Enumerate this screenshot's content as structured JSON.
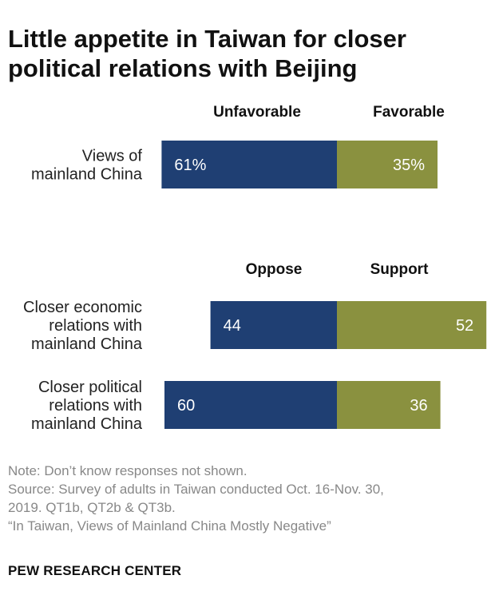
{
  "title": "Little appetite in Taiwan for closer political relations with Beijing",
  "colors": {
    "negative": "#1f3f73",
    "positive": "#8a913f",
    "text": "#111111",
    "note": "#888888"
  },
  "chart_data": {
    "type": "bar",
    "orientation": "horizontal-diverging",
    "groups": [
      {
        "headers": {
          "negative": "Unfavorable",
          "positive": "Favorable"
        },
        "rows": [
          {
            "label_lines": [
              "Views of",
              "mainland China"
            ],
            "negative": 61,
            "positive": 35,
            "negative_label": "61%",
            "positive_label": "35%"
          }
        ]
      },
      {
        "headers": {
          "negative": "Oppose",
          "positive": "Support"
        },
        "rows": [
          {
            "label_lines": [
              "Closer economic",
              "relations with",
              "mainland China"
            ],
            "negative": 44,
            "positive": 52,
            "negative_label": "44",
            "positive_label": "52"
          },
          {
            "label_lines": [
              "Closer political",
              "relations with",
              "mainland China"
            ],
            "negative": 60,
            "positive": 36,
            "negative_label": "60",
            "positive_label": "36"
          }
        ]
      }
    ]
  },
  "notes": {
    "note": "Note: Don’t know responses not shown.",
    "source_line1": "Source: Survey of adults in Taiwan conducted Oct. 16-Nov. 30,",
    "source_line2": "2019. QT1b, QT2b & QT3b.",
    "report": "“In Taiwan, Views of Mainland China Mostly Negative”"
  },
  "branding": "PEW RESEARCH CENTER"
}
